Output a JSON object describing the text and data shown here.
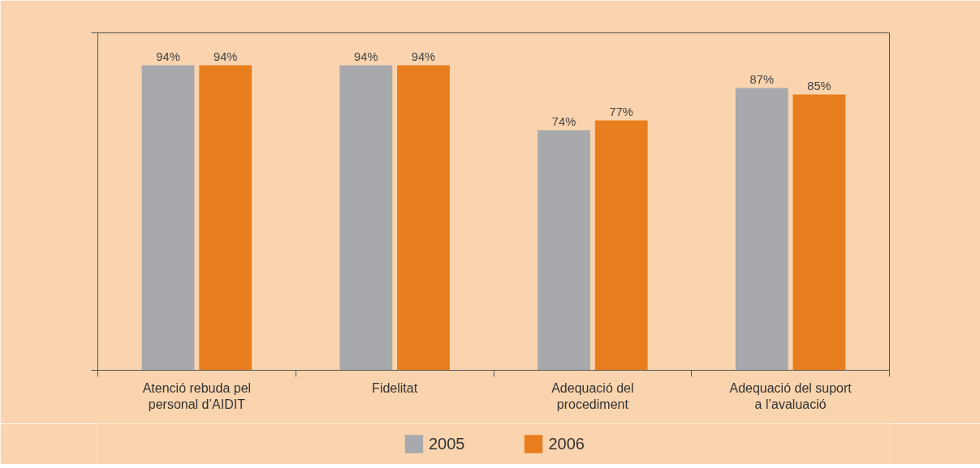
{
  "chart_data": {
    "type": "bar",
    "categories": [
      "Atenció rebuda pel\npersonal d’AIDIT",
      "Fidelitat",
      "Adequació del\nprocediment",
      "Adequació del suport\na l’avaluació"
    ],
    "series": [
      {
        "name": "2005",
        "color": "#a7a9ac",
        "values": [
          94,
          94,
          74,
          87
        ],
        "value_labels": [
          "94%",
          "94%",
          "74%",
          "87%"
        ]
      },
      {
        "name": "2006",
        "color": "#e97e1e",
        "values": [
          94,
          94,
          77,
          85
        ],
        "value_labels": [
          "94%",
          "94%",
          "77%",
          "85%"
        ]
      }
    ],
    "ylim": [
      0,
      104
    ],
    "yticks": [
      {
        "value": 0,
        "label": null
      },
      {
        "value": 104,
        "label": null
      }
    ],
    "grid": false,
    "legend": "bottom"
  }
}
